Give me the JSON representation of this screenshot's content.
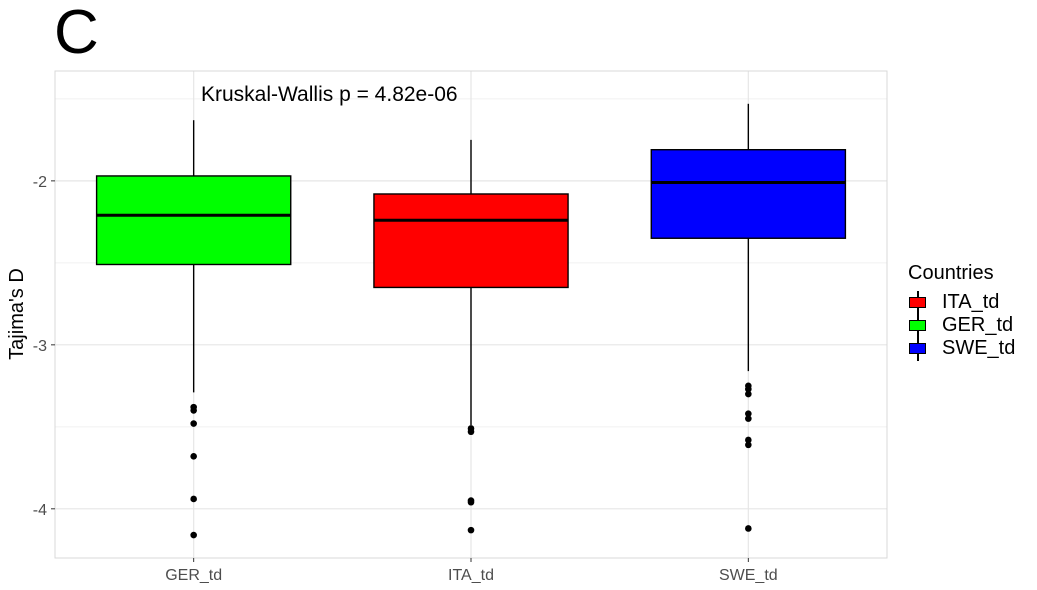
{
  "panel_label": "C",
  "chart_data": {
    "type": "box",
    "annotation": "Kruskal-Wallis p = 4.82e-06",
    "ylabel": "Tajima's D",
    "xlabel": "",
    "ylim": [
      -4.3,
      -1.33
    ],
    "y_ticks": [
      -2,
      -3,
      -4
    ],
    "y_tick_labels": [
      "-2",
      "-3",
      "-4"
    ],
    "grid": true,
    "legend": {
      "title": "Countries",
      "placement": "right",
      "items": [
        {
          "label": "ITA_td",
          "color": "#ff0000"
        },
        {
          "label": "GER_td",
          "color": "#00ff00"
        },
        {
          "label": "SWE_td",
          "color": "#0000ff"
        }
      ]
    },
    "boxes": [
      {
        "category": "GER_td",
        "color": "#00ff00",
        "whisker_high": -1.63,
        "q3": -1.97,
        "median": -2.21,
        "q1": -2.51,
        "whisker_low": -3.29,
        "outliers": [
          -3.38,
          -3.4,
          -3.48,
          -3.68,
          -3.94,
          -4.16
        ]
      },
      {
        "category": "ITA_td",
        "color": "#ff0000",
        "whisker_high": -1.75,
        "q3": -2.08,
        "median": -2.24,
        "q1": -2.65,
        "whisker_low": -3.49,
        "outliers": [
          -3.51,
          -3.53,
          -3.95,
          -3.96,
          -4.13
        ]
      },
      {
        "category": "SWE_td",
        "color": "#0000ff",
        "whisker_high": -1.53,
        "q3": -1.81,
        "median": -2.01,
        "q1": -2.35,
        "whisker_low": -3.16,
        "outliers": [
          -3.25,
          -3.27,
          -3.3,
          -3.42,
          -3.45,
          -3.58,
          -3.61,
          -4.12
        ]
      }
    ]
  }
}
